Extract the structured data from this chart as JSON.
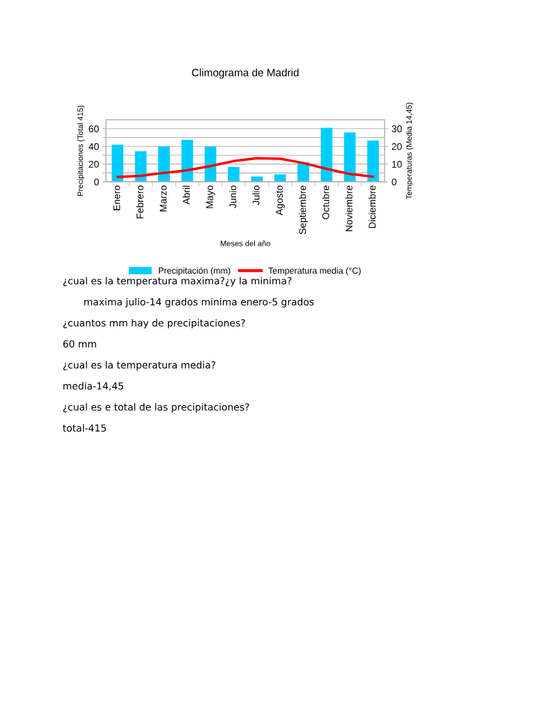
{
  "chart_data": {
    "type": "bar",
    "title": "Climograma de Madrid",
    "xlabel": "Meses del año",
    "ylabel": "Precipitaciones (Total 415)",
    "y2label": "Temperaturas (Media 14,45)",
    "categories": [
      "Enero",
      "Febrero",
      "Marzo",
      "Abril",
      "Mayo",
      "Junio",
      "Julio",
      "Agosto",
      "Septiembre",
      "Octubre",
      "Noviembre",
      "Diciembre"
    ],
    "series": [
      {
        "name": "Precipitación (mm)",
        "color": "#00ccff",
        "values": [
          42,
          34.5,
          40,
          47.5,
          39.7,
          16.7,
          6,
          8.6,
          22,
          61,
          55.6,
          46.7
        ]
      },
      {
        "name": "Temperatura media (°C)",
        "type": "line",
        "axis": "y2",
        "color": "#ff0000",
        "values": [
          2.7,
          3.4,
          5,
          6.5,
          8.9,
          11.7,
          13.3,
          13,
          10.6,
          7.3,
          4.4,
          2.9
        ]
      }
    ],
    "ylim": [
      0,
      70
    ],
    "yticks": [
      0,
      {
        "value": 10,
        "label": null
      },
      20,
      {
        "value": 30,
        "label": null
      },
      40,
      {
        "value": 50,
        "label": null
      },
      60
    ],
    "y2lim": [
      0,
      35
    ],
    "y2ticks": [
      0,
      10,
      20,
      30
    ],
    "grid": "y",
    "legend": "bottom",
    "marker": "none",
    "line_style": "solid",
    "annotations": [
      "¿cual es la temperatura maxima?¿y la minima?",
      "maxima julio-14 grados minima enero-5 grados",
      "¿cuantos mm hay de precipitaciones?",
      "60 mm",
      "¿cual es la temperatura media?",
      "media-14,45",
      "¿cual es e total de las precipitaciones?",
      "total-415"
    ]
  }
}
